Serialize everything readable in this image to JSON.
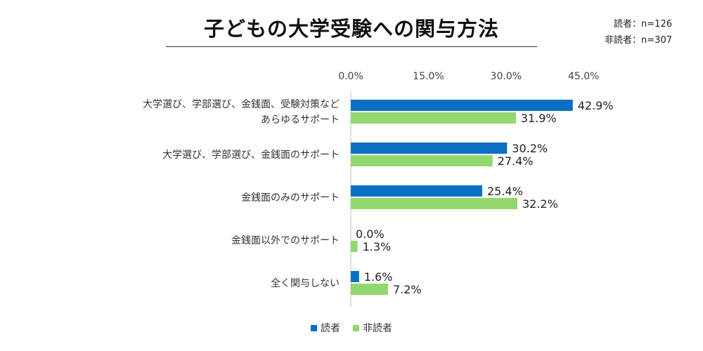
{
  "header": {
    "title": "子どもの大学受験への関与方法",
    "count_readers": "読者：n=126",
    "count_nonreaders": "非読者：n=307"
  },
  "legend": {
    "readers": "読者",
    "nonreaders": "非読者"
  },
  "colors": {
    "readers": "#0a6fc2",
    "nonreaders": "#92d86f"
  },
  "chart_data": {
    "type": "bar",
    "orientation": "horizontal",
    "title": "子どもの大学受験への関与方法",
    "categories": [
      [
        "大学選び、学部選び、金銭面、受験対策など",
        "あらゆるサポート"
      ],
      [
        "大学選び、学部選び、金銭面のサポート"
      ],
      [
        "金銭面のみのサポート"
      ],
      [
        "金銭面以外でのサポート"
      ],
      [
        "全く関与しない"
      ]
    ],
    "series": [
      {
        "name": "読者",
        "values": [
          42.9,
          30.2,
          25.4,
          0.0,
          1.6
        ]
      },
      {
        "name": "非読者",
        "values": [
          31.9,
          27.4,
          32.2,
          1.3,
          7.2
        ]
      }
    ],
    "xlim": [
      0,
      45
    ],
    "xticks": [
      0,
      15,
      30,
      45
    ],
    "xtick_labels": [
      "0.0%",
      "15.0%",
      "30.0%",
      "45.0%"
    ],
    "value_suffix": "%",
    "value_decimals": 1,
    "axis_position": "top",
    "grid": false,
    "legend_position": "bottom"
  }
}
